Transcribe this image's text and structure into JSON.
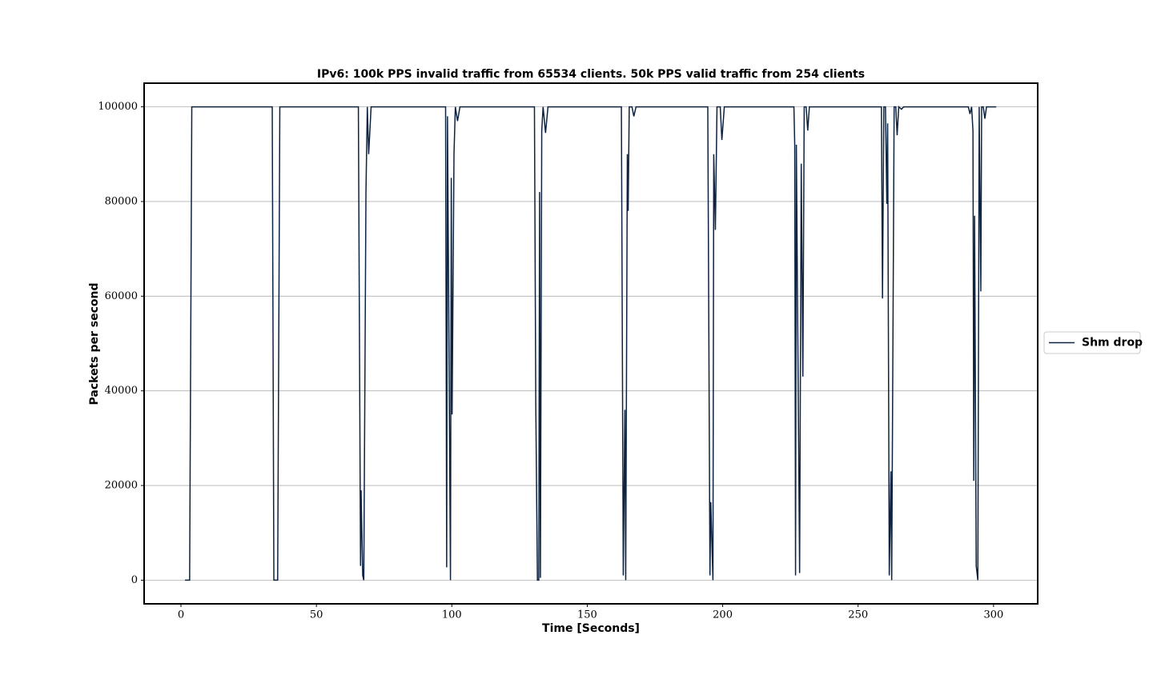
{
  "chart_data": {
    "type": "line",
    "title": "IPv6: 100k PPS invalid traffic from 65534 clients. 50k PPS valid traffic from 254 clients",
    "xlabel": "Time [Seconds]",
    "ylabel": "Packets per second",
    "x": [
      1.5,
      3.2,
      4.0,
      33.7,
      34.3,
      35.7,
      36.5,
      65.5,
      66.3,
      66.5,
      67.1,
      67.5,
      68.3,
      68.8,
      69.3,
      70.2,
      97.7,
      98.1,
      98.4,
      99.5,
      99.8,
      100.1,
      100.8,
      101.3,
      102.1,
      103,
      130.5,
      131.0,
      131.6,
      132.1,
      132.4,
      132.7,
      133.2,
      133.7,
      134.6,
      135.5,
      162.6,
      163.3,
      163.9,
      164.2,
      164.8,
      165.1,
      165.5,
      166.5,
      167.2,
      168,
      194.5,
      195.3,
      195.6,
      196.4,
      196.7,
      197.3,
      197.9,
      199.1,
      199.7,
      200.6,
      226.3,
      226.6,
      226.9,
      227.2,
      228.4,
      229.0,
      229.6,
      230.1,
      230.8,
      231.4,
      232,
      258.6,
      259.0,
      259.5,
      260.1,
      260.6,
      260.9,
      261.5,
      262.1,
      262.4,
      263.3,
      263.9,
      264.4,
      265,
      266,
      266.8,
      290.7,
      291.3,
      291.9,
      292.4,
      292.7,
      293.0,
      293.6,
      294.2,
      294.7,
      295.3,
      295.6,
      296.2,
      296.8,
      297.4,
      301
    ],
    "series": [
      {
        "name": "Shm drop",
        "color": "#0d2340",
        "values": [
          0,
          0,
          100000,
          100000,
          0,
          0,
          100000,
          100000,
          3000,
          19000,
          1000,
          0,
          82000,
          100000,
          90000,
          100000,
          100000,
          2700,
          98000,
          0,
          85000,
          35000,
          90000,
          100000,
          97000,
          100000,
          100000,
          37000,
          0,
          0,
          82000,
          500,
          95000,
          100000,
          94500,
          100000,
          100000,
          1000,
          36000,
          0,
          90000,
          78000,
          100000,
          100000,
          98000,
          100000,
          100000,
          1000,
          16500,
          0,
          90000,
          74000,
          100000,
          100000,
          93000,
          100000,
          100000,
          92000,
          1000,
          92000,
          1500,
          88000,
          43000,
          100000,
          100000,
          95000,
          100000,
          100000,
          59500,
          100000,
          100000,
          79500,
          96500,
          1000,
          23000,
          0,
          100000,
          100000,
          94000,
          100000,
          99500,
          100000,
          100000,
          98500,
          100000,
          95000,
          21000,
          77000,
          3000,
          0,
          100000,
          61000,
          100000,
          100000,
          97500,
          100000,
          100000
        ]
      }
    ],
    "xlim": [
      -13.6,
      316.3
    ],
    "ylim": [
      -5000,
      105000
    ],
    "xticks": [
      0,
      50,
      100,
      150,
      200,
      250,
      300
    ],
    "yticks": [
      0,
      20000,
      40000,
      60000,
      80000,
      100000
    ],
    "grid": true,
    "legend": "right"
  }
}
